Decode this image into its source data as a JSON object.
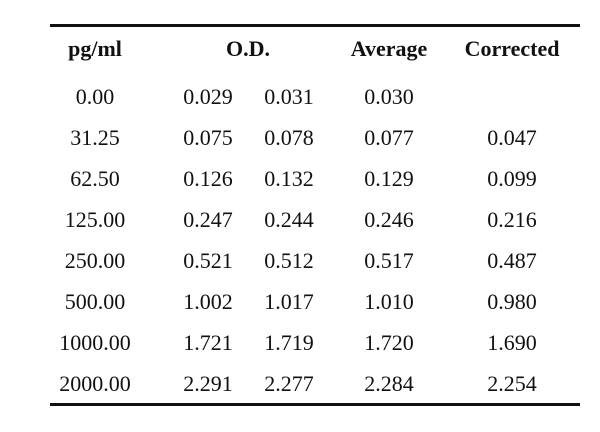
{
  "table": {
    "headers": {
      "concentration": "pg/ml",
      "od": "O.D.",
      "average": "Average",
      "corrected": "Corrected"
    },
    "rows": [
      {
        "conc": "0.00",
        "od1": "0.029",
        "od2": "0.031",
        "avg": "0.030",
        "corr": ""
      },
      {
        "conc": "31.25",
        "od1": "0.075",
        "od2": "0.078",
        "avg": "0.077",
        "corr": "0.047"
      },
      {
        "conc": "62.50",
        "od1": "0.126",
        "od2": "0.132",
        "avg": "0.129",
        "corr": "0.099"
      },
      {
        "conc": "125.00",
        "od1": "0.247",
        "od2": "0.244",
        "avg": "0.246",
        "corr": "0.216"
      },
      {
        "conc": "250.00",
        "od1": "0.521",
        "od2": "0.512",
        "avg": "0.517",
        "corr": "0.487"
      },
      {
        "conc": "500.00",
        "od1": "1.002",
        "od2": "1.017",
        "avg": "1.010",
        "corr": "0.980"
      },
      {
        "conc": "1000.00",
        "od1": "1.721",
        "od2": "1.719",
        "avg": "1.720",
        "corr": "1.690"
      },
      {
        "conc": "2000.00",
        "od1": "2.291",
        "od2": "2.277",
        "avg": "2.284",
        "corr": "2.254"
      }
    ]
  }
}
